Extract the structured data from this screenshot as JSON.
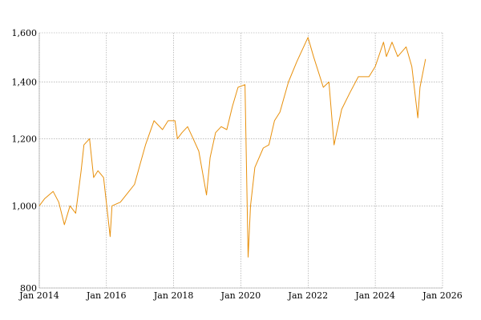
{
  "chart_data": {
    "type": "line",
    "title": "",
    "xlabel": "",
    "ylabel": "",
    "y_scale": "log",
    "xlim": [
      "2014-01-01",
      "2026-01-01"
    ],
    "ylim": [
      800,
      1600
    ],
    "grid": true,
    "line_color": "#e8900c",
    "x_ticks": [
      {
        "date": "2014-01-01",
        "label": "Jan 2014"
      },
      {
        "date": "2016-01-01",
        "label": "Jan 2016"
      },
      {
        "date": "2018-01-01",
        "label": "Jan 2018"
      },
      {
        "date": "2020-01-01",
        "label": "Jan 2020"
      },
      {
        "date": "2022-01-01",
        "label": "Jan 2022"
      },
      {
        "date": "2024-01-01",
        "label": "Jan 2024"
      },
      {
        "date": "2026-01-01",
        "label": "Jan 2026"
      }
    ],
    "y_ticks": [
      {
        "value": 800,
        "label": "800"
      },
      {
        "value": 1000,
        "label": "1,000"
      },
      {
        "value": 1200,
        "label": "1,200"
      },
      {
        "value": 1400,
        "label": "1,400"
      },
      {
        "value": 1600,
        "label": "1,600"
      }
    ],
    "series": [
      {
        "x": [
          "2014-01-01",
          "2014-03-01",
          "2014-06-01",
          "2014-08-01",
          "2014-10-01",
          "2014-12-01",
          "2015-02-01",
          "2015-04-01",
          "2015-05-01",
          "2015-07-01",
          "2015-08-15",
          "2015-10-01",
          "2015-12-01",
          "2016-02-10",
          "2016-03-01",
          "2016-06-01",
          "2016-09-01",
          "2016-11-01",
          "2017-01-01",
          "2017-03-01",
          "2017-06-01",
          "2017-09-01",
          "2017-11-01",
          "2018-01-15",
          "2018-02-10",
          "2018-04-01",
          "2018-06-01",
          "2018-08-01",
          "2018-10-01",
          "2018-12-24",
          "2019-02-01",
          "2019-04-01",
          "2019-06-01",
          "2019-08-01",
          "2019-10-01",
          "2019-12-01",
          "2020-02-15",
          "2020-03-20",
          "2020-04-15",
          "2020-06-01",
          "2020-09-01",
          "2020-11-01",
          "2021-01-01",
          "2021-03-01",
          "2021-06-01",
          "2021-09-01",
          "2021-12-31",
          "2022-03-01",
          "2022-06-15",
          "2022-08-15",
          "2022-10-10",
          "2023-01-01",
          "2023-04-01",
          "2023-07-01",
          "2023-10-25",
          "2024-01-01",
          "2024-03-31",
          "2024-05-01",
          "2024-07-01",
          "2024-09-01",
          "2024-12-01",
          "2025-02-01",
          "2025-04-08",
          "2025-05-01",
          "2025-06-30"
        ],
        "y": [
          1000,
          1020,
          1040,
          1010,
          950,
          1000,
          980,
          1100,
          1180,
          1200,
          1080,
          1100,
          1080,
          920,
          1000,
          1010,
          1040,
          1060,
          1120,
          1180,
          1260,
          1230,
          1260,
          1260,
          1200,
          1220,
          1240,
          1200,
          1160,
          1030,
          1140,
          1220,
          1240,
          1230,
          1310,
          1380,
          1390,
          870,
          1000,
          1110,
          1170,
          1180,
          1260,
          1290,
          1400,
          1480,
          1580,
          1500,
          1380,
          1400,
          1180,
          1300,
          1360,
          1420,
          1420,
          1460,
          1560,
          1500,
          1560,
          1500,
          1540,
          1460,
          1270,
          1380,
          1490
        ]
      }
    ]
  }
}
